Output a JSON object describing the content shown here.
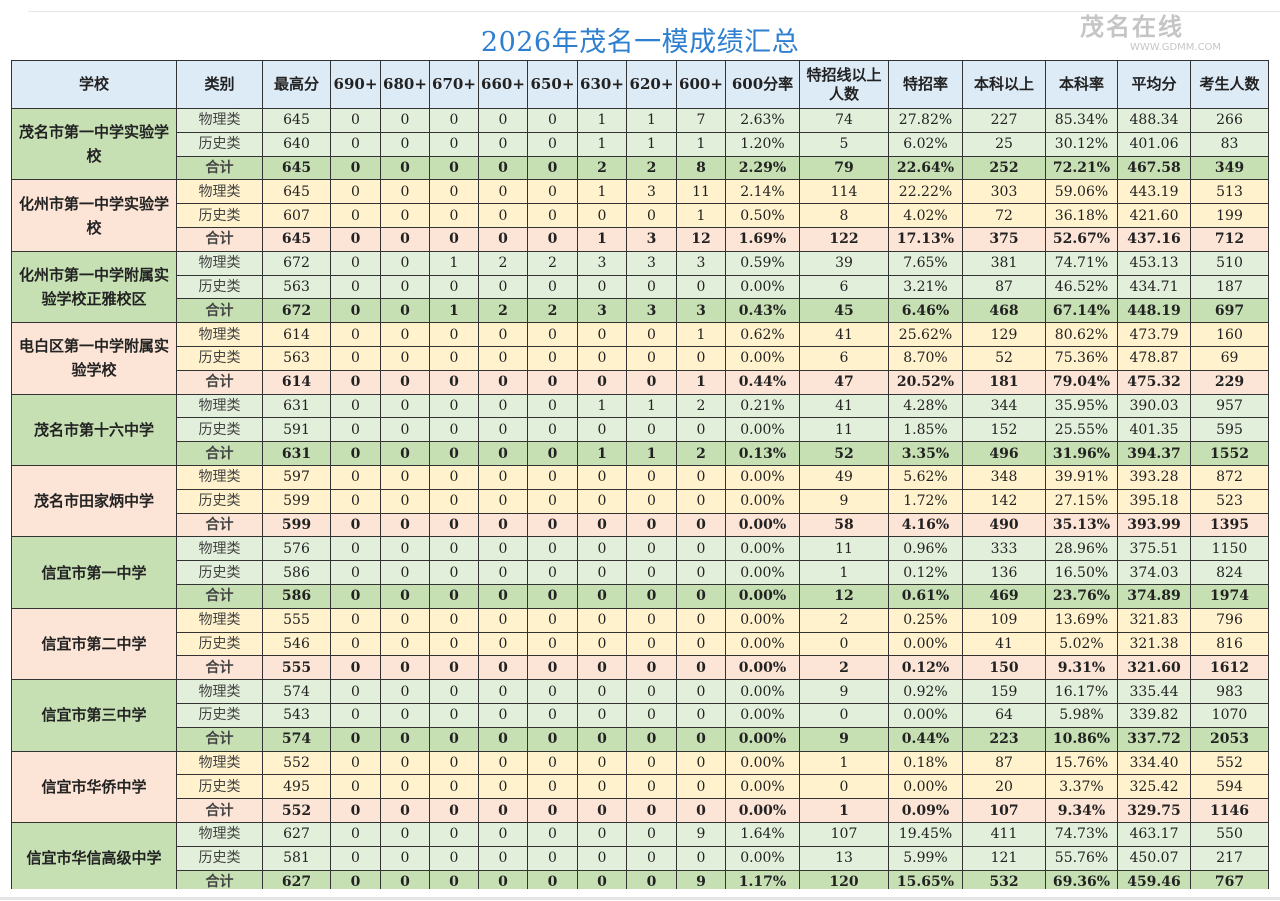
{
  "title": "2026年茂名一模成绩汇总",
  "headers": [
    "学校",
    "类别",
    "最高分",
    "690+",
    "680+",
    "670+",
    "660+",
    "650+",
    "630+",
    "620+",
    "600+",
    "600分率",
    "特招线以上人数",
    "特招率",
    "本科以上",
    "本科率",
    "平均分",
    "考生人数"
  ],
  "colors": {
    "header": "#ddebf7",
    "green_school": "#c6e0b4",
    "green_row": "#e2efda",
    "pink_school": "#fce4d6",
    "yellow_row": "#fff2cc",
    "title": "#2e7fd0"
  },
  "watermark": {
    "text": "茂名在线",
    "url_text": "WWW.GDMM.COM"
  },
  "schools": [
    {
      "name": "茂名市第一中学实验学校",
      "color": "green",
      "rows": [
        [
          "物理类",
          "645",
          "0",
          "0",
          "0",
          "0",
          "0",
          "1",
          "1",
          "7",
          "2.63%",
          "74",
          "27.82%",
          "227",
          "85.34%",
          "488.34",
          "266"
        ],
        [
          "历史类",
          "640",
          "0",
          "0",
          "0",
          "0",
          "0",
          "1",
          "1",
          "1",
          "1.20%",
          "5",
          "6.02%",
          "25",
          "30.12%",
          "401.06",
          "83"
        ],
        [
          "合计",
          "645",
          "0",
          "0",
          "0",
          "0",
          "0",
          "2",
          "2",
          "8",
          "2.29%",
          "79",
          "22.64%",
          "252",
          "72.21%",
          "467.58",
          "349"
        ]
      ]
    },
    {
      "name": "化州市第一中学实验学校",
      "color": "pink",
      "rows": [
        [
          "物理类",
          "645",
          "0",
          "0",
          "0",
          "0",
          "0",
          "1",
          "3",
          "11",
          "2.14%",
          "114",
          "22.22%",
          "303",
          "59.06%",
          "443.19",
          "513"
        ],
        [
          "历史类",
          "607",
          "0",
          "0",
          "0",
          "0",
          "0",
          "0",
          "0",
          "1",
          "0.50%",
          "8",
          "4.02%",
          "72",
          "36.18%",
          "421.60",
          "199"
        ],
        [
          "合计",
          "645",
          "0",
          "0",
          "0",
          "0",
          "0",
          "1",
          "3",
          "12",
          "1.69%",
          "122",
          "17.13%",
          "375",
          "52.67%",
          "437.16",
          "712"
        ]
      ]
    },
    {
      "name": "化州市第一中学附属实验学校正雅校区",
      "color": "green",
      "rows": [
        [
          "物理类",
          "672",
          "0",
          "0",
          "1",
          "2",
          "2",
          "3",
          "3",
          "3",
          "0.59%",
          "39",
          "7.65%",
          "381",
          "74.71%",
          "453.13",
          "510"
        ],
        [
          "历史类",
          "563",
          "0",
          "0",
          "0",
          "0",
          "0",
          "0",
          "0",
          "0",
          "0.00%",
          "6",
          "3.21%",
          "87",
          "46.52%",
          "434.71",
          "187"
        ],
        [
          "合计",
          "672",
          "0",
          "0",
          "1",
          "2",
          "2",
          "3",
          "3",
          "3",
          "0.43%",
          "45",
          "6.46%",
          "468",
          "67.14%",
          "448.19",
          "697"
        ]
      ]
    },
    {
      "name": "电白区第一中学附属实验学校",
      "color": "pink",
      "rows": [
        [
          "物理类",
          "614",
          "0",
          "0",
          "0",
          "0",
          "0",
          "0",
          "0",
          "1",
          "0.62%",
          "41",
          "25.62%",
          "129",
          "80.62%",
          "473.79",
          "160"
        ],
        [
          "历史类",
          "563",
          "0",
          "0",
          "0",
          "0",
          "0",
          "0",
          "0",
          "0",
          "0.00%",
          "6",
          "8.70%",
          "52",
          "75.36%",
          "478.87",
          "69"
        ],
        [
          "合计",
          "614",
          "0",
          "0",
          "0",
          "0",
          "0",
          "0",
          "0",
          "1",
          "0.44%",
          "47",
          "20.52%",
          "181",
          "79.04%",
          "475.32",
          "229"
        ]
      ]
    },
    {
      "name": "茂名市第十六中学",
      "color": "green",
      "rows": [
        [
          "物理类",
          "631",
          "0",
          "0",
          "0",
          "0",
          "0",
          "1",
          "1",
          "2",
          "0.21%",
          "41",
          "4.28%",
          "344",
          "35.95%",
          "390.03",
          "957"
        ],
        [
          "历史类",
          "591",
          "0",
          "0",
          "0",
          "0",
          "0",
          "0",
          "0",
          "0",
          "0.00%",
          "11",
          "1.85%",
          "152",
          "25.55%",
          "401.35",
          "595"
        ],
        [
          "合计",
          "631",
          "0",
          "0",
          "0",
          "0",
          "0",
          "1",
          "1",
          "2",
          "0.13%",
          "52",
          "3.35%",
          "496",
          "31.96%",
          "394.37",
          "1552"
        ]
      ]
    },
    {
      "name": "茂名市田家炳中学",
      "color": "pink",
      "rows": [
        [
          "物理类",
          "597",
          "0",
          "0",
          "0",
          "0",
          "0",
          "0",
          "0",
          "0",
          "0.00%",
          "49",
          "5.62%",
          "348",
          "39.91%",
          "393.28",
          "872"
        ],
        [
          "历史类",
          "599",
          "0",
          "0",
          "0",
          "0",
          "0",
          "0",
          "0",
          "0",
          "0.00%",
          "9",
          "1.72%",
          "142",
          "27.15%",
          "395.18",
          "523"
        ],
        [
          "合计",
          "599",
          "0",
          "0",
          "0",
          "0",
          "0",
          "0",
          "0",
          "0",
          "0.00%",
          "58",
          "4.16%",
          "490",
          "35.13%",
          "393.99",
          "1395"
        ]
      ]
    },
    {
      "name": "信宜市第一中学",
      "color": "green",
      "rows": [
        [
          "物理类",
          "576",
          "0",
          "0",
          "0",
          "0",
          "0",
          "0",
          "0",
          "0",
          "0.00%",
          "11",
          "0.96%",
          "333",
          "28.96%",
          "375.51",
          "1150"
        ],
        [
          "历史类",
          "586",
          "0",
          "0",
          "0",
          "0",
          "0",
          "0",
          "0",
          "0",
          "0.00%",
          "1",
          "0.12%",
          "136",
          "16.50%",
          "374.03",
          "824"
        ],
        [
          "合计",
          "586",
          "0",
          "0",
          "0",
          "0",
          "0",
          "0",
          "0",
          "0",
          "0.00%",
          "12",
          "0.61%",
          "469",
          "23.76%",
          "374.89",
          "1974"
        ]
      ]
    },
    {
      "name": "信宜市第二中学",
      "color": "pink",
      "rows": [
        [
          "物理类",
          "555",
          "0",
          "0",
          "0",
          "0",
          "0",
          "0",
          "0",
          "0",
          "0.00%",
          "2",
          "0.25%",
          "109",
          "13.69%",
          "321.83",
          "796"
        ],
        [
          "历史类",
          "546",
          "0",
          "0",
          "0",
          "0",
          "0",
          "0",
          "0",
          "0",
          "0.00%",
          "0",
          "0.00%",
          "41",
          "5.02%",
          "321.38",
          "816"
        ],
        [
          "合计",
          "555",
          "0",
          "0",
          "0",
          "0",
          "0",
          "0",
          "0",
          "0",
          "0.00%",
          "2",
          "0.12%",
          "150",
          "9.31%",
          "321.60",
          "1612"
        ]
      ]
    },
    {
      "name": "信宜市第三中学",
      "color": "green",
      "rows": [
        [
          "物理类",
          "574",
          "0",
          "0",
          "0",
          "0",
          "0",
          "0",
          "0",
          "0",
          "0.00%",
          "9",
          "0.92%",
          "159",
          "16.17%",
          "335.44",
          "983"
        ],
        [
          "历史类",
          "543",
          "0",
          "0",
          "0",
          "0",
          "0",
          "0",
          "0",
          "0",
          "0.00%",
          "0",
          "0.00%",
          "64",
          "5.98%",
          "339.82",
          "1070"
        ],
        [
          "合计",
          "574",
          "0",
          "0",
          "0",
          "0",
          "0",
          "0",
          "0",
          "0",
          "0.00%",
          "9",
          "0.44%",
          "223",
          "10.86%",
          "337.72",
          "2053"
        ]
      ]
    },
    {
      "name": "信宜市华侨中学",
      "color": "pink",
      "rows": [
        [
          "物理类",
          "552",
          "0",
          "0",
          "0",
          "0",
          "0",
          "0",
          "0",
          "0",
          "0.00%",
          "1",
          "0.18%",
          "87",
          "15.76%",
          "334.40",
          "552"
        ],
        [
          "历史类",
          "495",
          "0",
          "0",
          "0",
          "0",
          "0",
          "0",
          "0",
          "0",
          "0.00%",
          "0",
          "0.00%",
          "20",
          "3.37%",
          "325.42",
          "594"
        ],
        [
          "合计",
          "552",
          "0",
          "0",
          "0",
          "0",
          "0",
          "0",
          "0",
          "0",
          "0.00%",
          "1",
          "0.09%",
          "107",
          "9.34%",
          "329.75",
          "1146"
        ]
      ]
    },
    {
      "name": "信宜市华信高级中学",
      "color": "green",
      "rows": [
        [
          "物理类",
          "627",
          "0",
          "0",
          "0",
          "0",
          "0",
          "0",
          "0",
          "9",
          "1.64%",
          "107",
          "19.45%",
          "411",
          "74.73%",
          "463.17",
          "550"
        ],
        [
          "历史类",
          "581",
          "0",
          "0",
          "0",
          "0",
          "0",
          "0",
          "0",
          "0",
          "0.00%",
          "13",
          "5.99%",
          "121",
          "55.76%",
          "450.07",
          "217"
        ],
        [
          "合计",
          "627",
          "0",
          "0",
          "0",
          "0",
          "0",
          "0",
          "0",
          "9",
          "1.17%",
          "120",
          "15.65%",
          "532",
          "69.36%",
          "459.46",
          "767"
        ]
      ]
    }
  ]
}
